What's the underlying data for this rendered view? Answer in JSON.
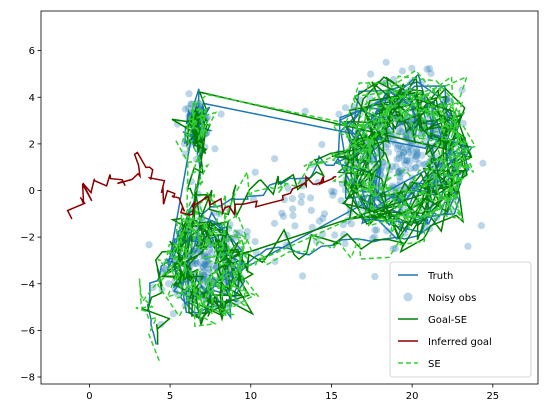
{
  "chart_data": {
    "type": "line",
    "title": "",
    "xlabel": "",
    "ylabel": "",
    "xlim": [
      -3.0,
      27.8
    ],
    "ylim": [
      -8.3,
      7.7
    ],
    "x_ticks": [
      0,
      5,
      10,
      15,
      20,
      25
    ],
    "y_ticks": [
      -8,
      -6,
      -4,
      -2,
      0,
      2,
      4,
      6
    ],
    "grid": false,
    "legend_position": "lower-right",
    "colors": {
      "truth": "#1f77b4",
      "noisy_obs": "#1f77b4",
      "goal_se": "#008000",
      "inferred_goal": "#8b0000",
      "se": "#32cd32"
    },
    "series": [
      {
        "name": "Truth",
        "style": "solid-line",
        "color_key": "truth"
      },
      {
        "name": "Noisy obs",
        "style": "scatter",
        "color_key": "noisy_obs"
      },
      {
        "name": "Goal-SE",
        "style": "solid-line",
        "color_key": "goal_se"
      },
      {
        "name": "Inferred goal",
        "style": "solid-line",
        "color_key": "inferred_goal"
      },
      {
        "name": "SE",
        "style": "dashed-line",
        "color_key": "se"
      }
    ],
    "waypoints": {
      "truth_path": [
        [
          4.0,
          -6.5
        ],
        [
          3.6,
          -4.8
        ],
        [
          4.6,
          -3.0
        ],
        [
          6.2,
          -1.8
        ],
        [
          8.2,
          -2.2
        ],
        [
          9.6,
          -3.3
        ],
        [
          9.0,
          -4.6
        ],
        [
          7.0,
          -5.2
        ],
        [
          5.2,
          -4.2
        ],
        [
          5.4,
          -2.0
        ],
        [
          7.0,
          -0.8
        ],
        [
          9.5,
          -0.3
        ],
        [
          12.0,
          0.4
        ],
        [
          14.5,
          1.0
        ],
        [
          16.5,
          1.6
        ],
        [
          18.5,
          2.6
        ],
        [
          20.5,
          2.8
        ],
        [
          22.5,
          2.0
        ],
        [
          23.0,
          0.5
        ],
        [
          21.8,
          -0.8
        ],
        [
          19.5,
          -1.5
        ],
        [
          17.0,
          -0.8
        ],
        [
          16.2,
          1.0
        ],
        [
          17.5,
          3.0
        ],
        [
          19.8,
          4.2
        ],
        [
          22.0,
          3.6
        ],
        [
          23.5,
          1.5
        ],
        [
          22.5,
          -1.0
        ],
        [
          19.0,
          -2.2
        ],
        [
          15.0,
          -2.4
        ],
        [
          11.0,
          -2.6
        ],
        [
          8.5,
          -3.5
        ],
        [
          6.6,
          -4.4
        ],
        [
          5.6,
          -3.0
        ],
        [
          6.2,
          -1.2
        ],
        [
          6.8,
          1.0
        ],
        [
          6.9,
          2.8
        ],
        [
          7.2,
          4.0
        ]
      ],
      "cluster_1": {
        "center": [
          19.5,
          1.6
        ],
        "spread": [
          3.2,
          2.6
        ]
      },
      "cluster_2": {
        "center": [
          7.3,
          -3.3
        ],
        "spread": [
          2.3,
          1.6
        ]
      },
      "cluster_3": {
        "center": [
          6.6,
          2.8
        ],
        "spread": [
          0.9,
          1.0
        ]
      },
      "inferred_goal_path": [
        [
          -1.0,
          -0.9
        ],
        [
          -0.5,
          -0.2
        ],
        [
          0.5,
          0.1
        ],
        [
          1.8,
          0.4
        ],
        [
          2.6,
          0.6
        ],
        [
          3.3,
          1.4
        ],
        [
          4.0,
          0.3
        ],
        [
          4.8,
          0.0
        ],
        [
          5.6,
          -0.6
        ],
        [
          6.4,
          -0.9
        ],
        [
          8.0,
          -0.8
        ],
        [
          9.5,
          -0.6
        ],
        [
          11.5,
          -0.2
        ],
        [
          13.2,
          0.2
        ],
        [
          14.6,
          0.5
        ],
        [
          15.3,
          0.6
        ]
      ]
    }
  },
  "legend": {
    "truth": "Truth",
    "noisy_obs": "Noisy obs",
    "goal_se": "Goal-SE",
    "inferred_goal": "Inferred goal",
    "se": "SE"
  }
}
